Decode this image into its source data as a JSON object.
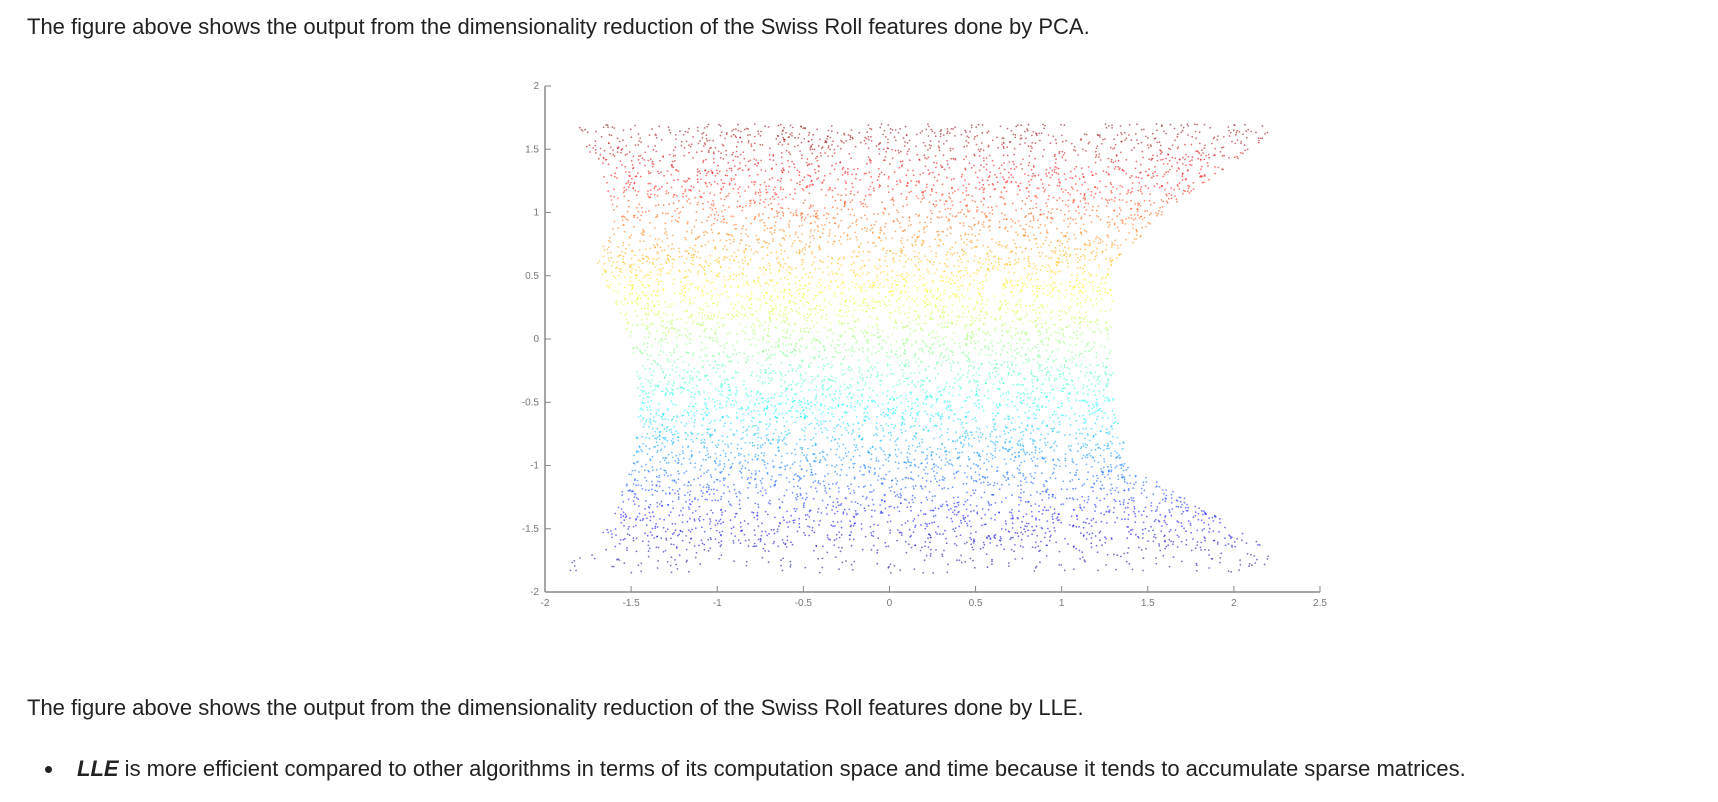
{
  "paragraph_pca": "The figure above shows the output from the dimensionality reduction of the Swiss Roll features done by PCA.",
  "paragraph_lle": "The figure above shows the output from the dimensionality reduction of the Swiss Roll features done by LLE.",
  "bullets": [
    {
      "term": "LLE",
      "text": " is more efficient compared to other algorithms in terms of its computation space and time because it tends to accumulate sparse matrices."
    }
  ],
  "chart_data": {
    "type": "scatter",
    "xlim": [
      -2,
      2.5
    ],
    "ylim": [
      -2,
      2
    ],
    "x_ticks": [
      "-2",
      "-1.5",
      "-1",
      "-0.5",
      "0",
      "0.5",
      "1",
      "1.5",
      "2",
      "2.5"
    ],
    "y_ticks": [
      "-2",
      "-1.5",
      "-1",
      "-0.5",
      "0",
      "0.5",
      "1",
      "1.5",
      "2"
    ],
    "grid": false,
    "legend": "none",
    "point_count_approx": 9000,
    "colormap": "jet (blue at bottom, red at top)",
    "region_outline_left": [
      [
        -1.85,
        1.7
      ],
      [
        -1.7,
        1.4
      ],
      [
        -1.6,
        1.0
      ],
      [
        -1.7,
        0.6
      ],
      [
        -1.5,
        0.0
      ],
      [
        -1.45,
        -0.5
      ],
      [
        -1.5,
        -1.0
      ],
      [
        -1.6,
        -1.4
      ],
      [
        -1.9,
        -1.85
      ]
    ],
    "region_outline_right": [
      [
        2.3,
        1.7
      ],
      [
        1.6,
        1.0
      ],
      [
        1.3,
        0.6
      ],
      [
        1.3,
        0.0
      ],
      [
        1.3,
        -0.5
      ],
      [
        1.4,
        -1.0
      ],
      [
        2.2,
        -1.65
      ]
    ],
    "colors": {
      "axis": "#888888",
      "text": "#222222"
    }
  }
}
